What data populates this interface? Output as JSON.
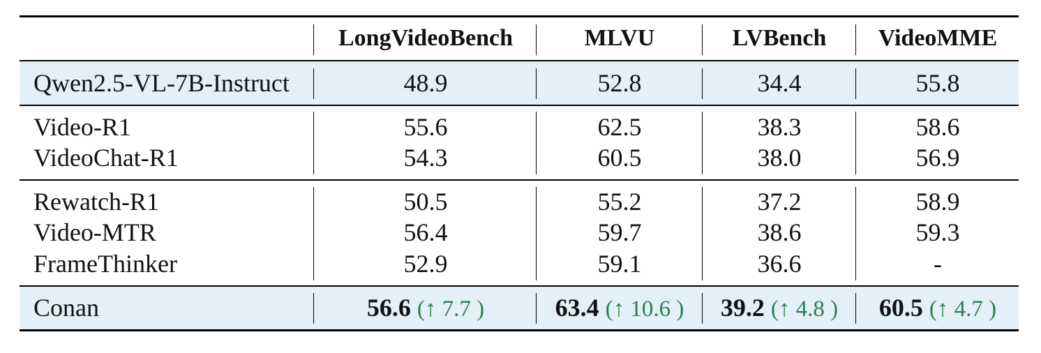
{
  "table": {
    "header": [
      "",
      "LongVideoBench",
      "MLVU",
      "LVBench",
      "VideoMME"
    ],
    "groups": [
      {
        "highlight": true,
        "rows": [
          {
            "model": "Qwen2.5-VL-7B-Instruct",
            "values": [
              "48.9",
              "52.8",
              "34.4",
              "55.8"
            ]
          }
        ]
      },
      {
        "highlight": false,
        "rows": [
          {
            "model": "Video-R1",
            "values": [
              "55.6",
              "62.5",
              "38.3",
              "58.6"
            ]
          },
          {
            "model": "VideoChat-R1",
            "values": [
              "54.3",
              "60.5",
              "38.0",
              "56.9"
            ]
          }
        ]
      },
      {
        "highlight": false,
        "rows": [
          {
            "model": "Rewatch-R1",
            "values": [
              "50.5",
              "55.2",
              "37.2",
              "58.9"
            ]
          },
          {
            "model": "Video-MTR",
            "values": [
              "56.4",
              "59.7",
              "38.6",
              "59.3"
            ]
          },
          {
            "model": "FrameThinker",
            "values": [
              "52.9",
              "59.1",
              "36.6",
              "-"
            ]
          }
        ]
      },
      {
        "highlight": true,
        "rows": [
          {
            "model": "Conan",
            "values": [
              "56.6",
              "63.4",
              "39.2",
              "60.5"
            ],
            "gains": [
              "(↑ 7.7 )",
              "(↑ 10.6 )",
              "(↑ 4.8 )",
              "(↑ 4.7 )"
            ]
          }
        ]
      }
    ],
    "colors": {
      "highlight_band": "#e3f0f8",
      "gain_text": "#2e7d4a",
      "rule": "#000000"
    }
  }
}
